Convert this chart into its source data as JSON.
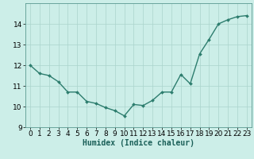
{
  "x": [
    0,
    1,
    2,
    3,
    4,
    5,
    6,
    7,
    8,
    9,
    10,
    11,
    12,
    13,
    14,
    15,
    16,
    17,
    18,
    19,
    20,
    21,
    22,
    23
  ],
  "y": [
    12.0,
    11.6,
    11.5,
    11.2,
    10.7,
    10.7,
    10.25,
    10.15,
    9.95,
    9.8,
    9.55,
    10.1,
    10.05,
    10.3,
    10.7,
    10.7,
    11.55,
    11.1,
    12.55,
    13.25,
    14.0,
    14.2,
    14.35,
    14.4
  ],
  "line_color": "#2d7d6e",
  "marker": "D",
  "marker_size": 2.0,
  "line_width": 1.0,
  "bg_color": "#cceee8",
  "grid_color": "#aad4cc",
  "xlabel": "Humidex (Indice chaleur)",
  "xlabel_fontsize": 7,
  "tick_fontsize": 6.5,
  "xlim": [
    -0.5,
    23.5
  ],
  "ylim": [
    9.0,
    15.0
  ],
  "yticks": [
    9,
    10,
    11,
    12,
    13,
    14
  ],
  "xticks": [
    0,
    1,
    2,
    3,
    4,
    5,
    6,
    7,
    8,
    9,
    10,
    11,
    12,
    13,
    14,
    15,
    16,
    17,
    18,
    19,
    20,
    21,
    22,
    23
  ]
}
